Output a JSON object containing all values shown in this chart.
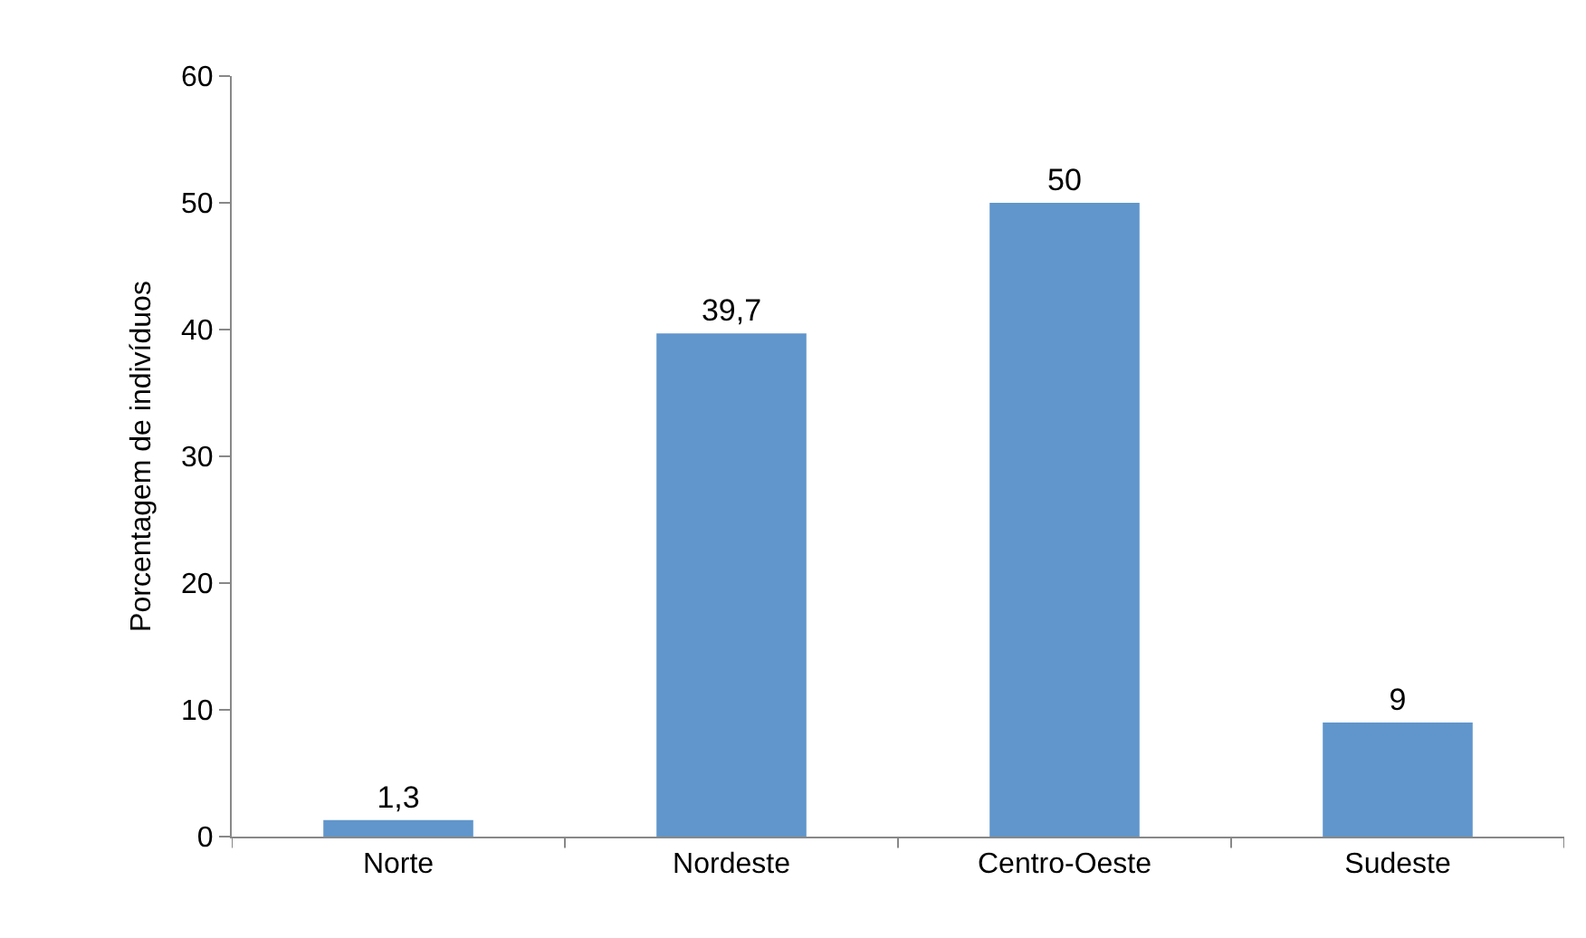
{
  "chart_data": {
    "type": "bar",
    "ylabel": "Porcentagem de indivíduos",
    "categories": [
      "Norte",
      "Nordeste",
      "Centro-Oeste",
      "Sudeste"
    ],
    "values": [
      1.3,
      39.7,
      50,
      9
    ],
    "value_labels": [
      "1,3",
      "39,7",
      "50",
      "9"
    ],
    "color": "#6096cc",
    "ylim": [
      0,
      60
    ],
    "yticks": [
      0,
      10,
      20,
      30,
      40,
      50,
      60
    ],
    "grid": false
  }
}
